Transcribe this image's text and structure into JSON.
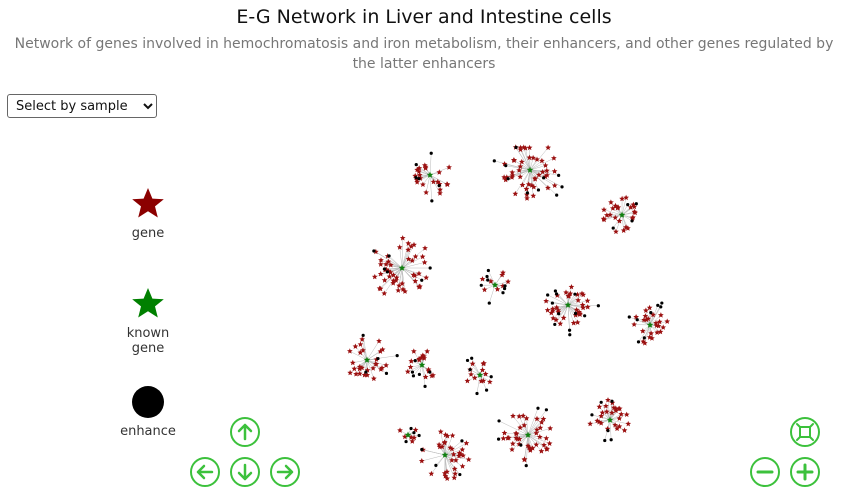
{
  "header": {
    "title": "E-G Network in Liver and Intestine cells",
    "subtitle": "Network of genes involved in hemochromatosis and iron metabolism, their enhancers, and other genes regulated by the latter enhancers"
  },
  "sample_select": {
    "selected": "Select by sample"
  },
  "legend": {
    "gene": {
      "label": "gene",
      "color": "#8b0000",
      "icon": "star-icon"
    },
    "known_gene": {
      "label": "known\ngene",
      "color": "#008000",
      "icon": "star-icon"
    },
    "enhancer": {
      "label": "enhance",
      "color": "#000000",
      "icon": "circle-icon"
    }
  },
  "navigation": {
    "pan_up": "arrow-up-icon",
    "pan_left": "arrow-left-icon",
    "pan_down": "arrow-down-icon",
    "pan_right": "arrow-right-icon",
    "zoom_fit": "fit-icon",
    "zoom_out": "minus-icon",
    "zoom_in": "plus-icon",
    "button_color": "#3cc13c"
  }
}
